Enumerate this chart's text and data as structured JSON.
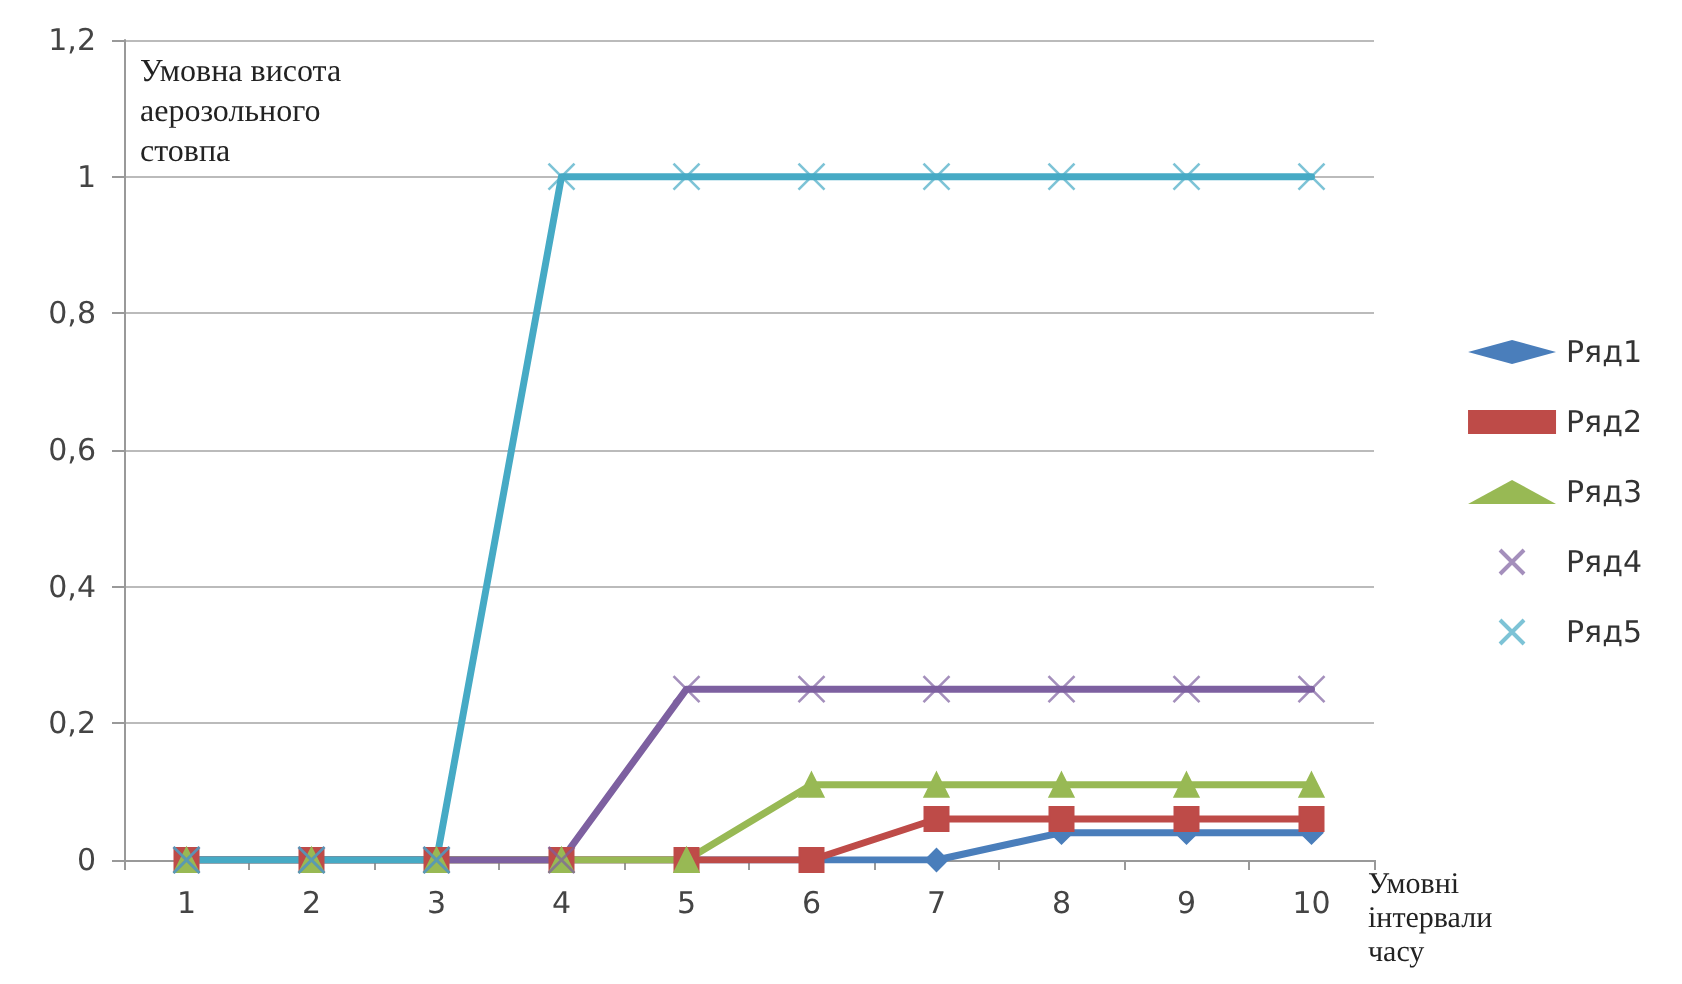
{
  "chart_data": {
    "type": "line",
    "ylabel": "Умовна висота аерозольного стовпа",
    "xlabel": "Умовні інтервали часу",
    "categories": [
      "1",
      "2",
      "3",
      "4",
      "5",
      "6",
      "7",
      "8",
      "9",
      "10"
    ],
    "series": [
      {
        "name": "Ряд1",
        "color": "#4a7ebb",
        "marker": "diamond",
        "values": [
          0,
          0,
          0,
          0,
          0,
          0,
          0,
          0.04,
          0.04,
          0.04
        ]
      },
      {
        "name": "Ряд2",
        "color": "#be4b48",
        "marker": "square",
        "values": [
          0,
          0,
          0,
          0,
          0,
          0,
          0.06,
          0.06,
          0.06,
          0.06
        ]
      },
      {
        "name": "Ряд3",
        "color": "#98b954",
        "marker": "triangle",
        "values": [
          0,
          0,
          0,
          0,
          0,
          0.11,
          0.11,
          0.11,
          0.11,
          0.11
        ]
      },
      {
        "name": "Ряд4",
        "color": "#7d60a0",
        "marker": "cross",
        "values": [
          0,
          0,
          0,
          0,
          0.25,
          0.25,
          0.25,
          0.25,
          0.25,
          0.25
        ]
      },
      {
        "name": "Ряд5",
        "color": "#46aac5",
        "marker": "cross",
        "values": [
          0,
          0,
          0,
          1,
          1,
          1,
          1,
          1,
          1,
          1
        ]
      }
    ],
    "ylim": [
      0,
      1.2
    ],
    "yticks": [
      0,
      {
        "value": 0.2,
        "label": "0,2"
      },
      {
        "value": 0.4,
        "label": "0,4"
      },
      {
        "value": 0.6,
        "label": "0,6"
      },
      {
        "value": 0.8,
        "label": "0,8"
      },
      1,
      {
        "value": 1.2,
        "label": "1,2"
      }
    ],
    "grid": "y",
    "legend": "right"
  }
}
